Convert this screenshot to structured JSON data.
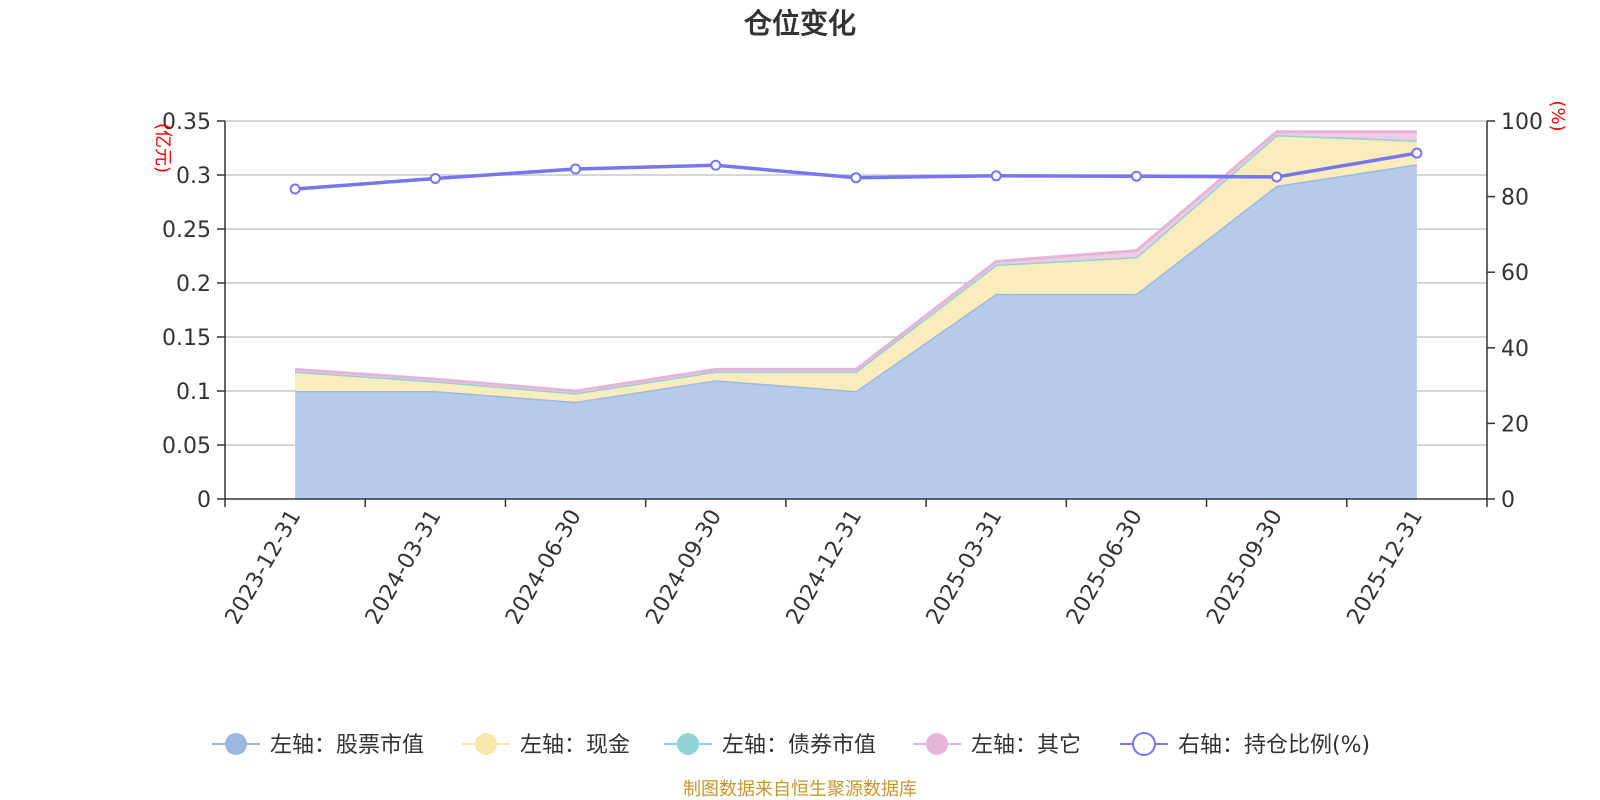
{
  "chart_data": {
    "type": "area",
    "title": "仓位变化",
    "x": [
      "2023-12-31",
      "2024-03-31",
      "2024-06-30",
      "2024-09-30",
      "2024-12-31",
      "2025-03-31",
      "2025-06-30",
      "2025-09-30",
      "2025-12-31"
    ],
    "left_axis": {
      "unit": "(亿元)",
      "ylim": [
        0,
        0.35
      ],
      "ticks": [
        "0",
        "0.05",
        "0.1",
        "0.15",
        "0.2",
        "0.25",
        "0.3",
        "0.35"
      ]
    },
    "right_axis": {
      "unit": "(%)",
      "ylim": [
        0,
        100
      ],
      "ticks": [
        "0",
        "20",
        "40",
        "60",
        "80",
        "100"
      ]
    },
    "series": [
      {
        "name": "左轴：股票市值",
        "axis": "left",
        "type": "area",
        "color": "#9db8e0",
        "fill": "#b6cbea",
        "values": [
          0.1,
          0.1,
          0.09,
          0.11,
          0.1,
          0.19,
          0.19,
          0.29,
          0.31
        ]
      },
      {
        "name": "左轴：现金",
        "axis": "left",
        "type": "area",
        "color": "#f8e7a8",
        "fill": "#faecbd",
        "values": [
          0.018,
          0.009,
          0.008,
          0.008,
          0.018,
          0.027,
          0.034,
          0.047,
          0.022
        ]
      },
      {
        "name": "左轴：债券市值",
        "axis": "left",
        "type": "area",
        "color": "#8fd3d3",
        "fill": "#8fd3d3",
        "values": [
          0,
          0,
          0,
          0,
          0,
          0,
          0,
          0,
          0
        ]
      },
      {
        "name": "左轴：其它",
        "axis": "left",
        "type": "area",
        "color": "#e6b3d9",
        "fill": "#eecbe4",
        "values": [
          0.002,
          0.002,
          0.002,
          0.002,
          0.002,
          0.003,
          0.006,
          0.003,
          0.008
        ]
      },
      {
        "name": "右轴：持仓比例(%)",
        "axis": "right",
        "type": "line",
        "color": "#7676ee",
        "values": [
          82.0,
          84.8,
          87.3,
          88.3,
          85.0,
          85.5,
          85.4,
          85.2,
          91.5
        ]
      }
    ],
    "grid": true,
    "legend_position": "bottom"
  },
  "source_note": "制图数据来自恒生聚源数据库"
}
